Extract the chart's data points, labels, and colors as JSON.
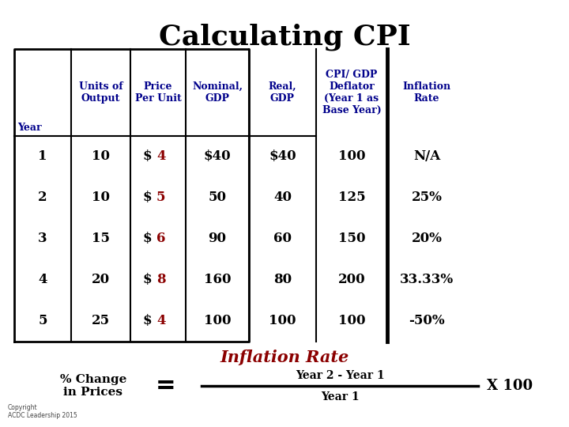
{
  "title": "Calculating CPI",
  "title_fontsize": 26,
  "title_color": "#000000",
  "background_color": "#ffffff",
  "header_color": "#00008B",
  "data_color": "#000000",
  "price_num_color": "#8B0000",
  "years": [
    "1",
    "2",
    "3",
    "4",
    "5"
  ],
  "units_output": [
    "10",
    "10",
    "15",
    "20",
    "25"
  ],
  "price_per_unit_num": [
    "4",
    "5",
    "6",
    "8",
    "4"
  ],
  "nominal_gdp": [
    "$40",
    "50",
    "90",
    "160",
    "100"
  ],
  "real_gdp": [
    "$40",
    "40",
    "60",
    "80",
    "100"
  ],
  "cpi_deflator": [
    "100",
    "125",
    "150",
    "200",
    "100"
  ],
  "inflation_rate": [
    "N/A",
    "25%",
    "20%",
    "33.33%",
    "-50%"
  ],
  "inflation_rate_title": "Inflation Rate",
  "inflation_rate_title_color": "#8B0000",
  "formula_left": "% Change\nin Prices",
  "formula_numerator": "Year 2 - Year 1",
  "formula_denominator": "Year 1",
  "formula_x100": "X 100",
  "copyright": "Copyright\nACDC Leadership 2015"
}
